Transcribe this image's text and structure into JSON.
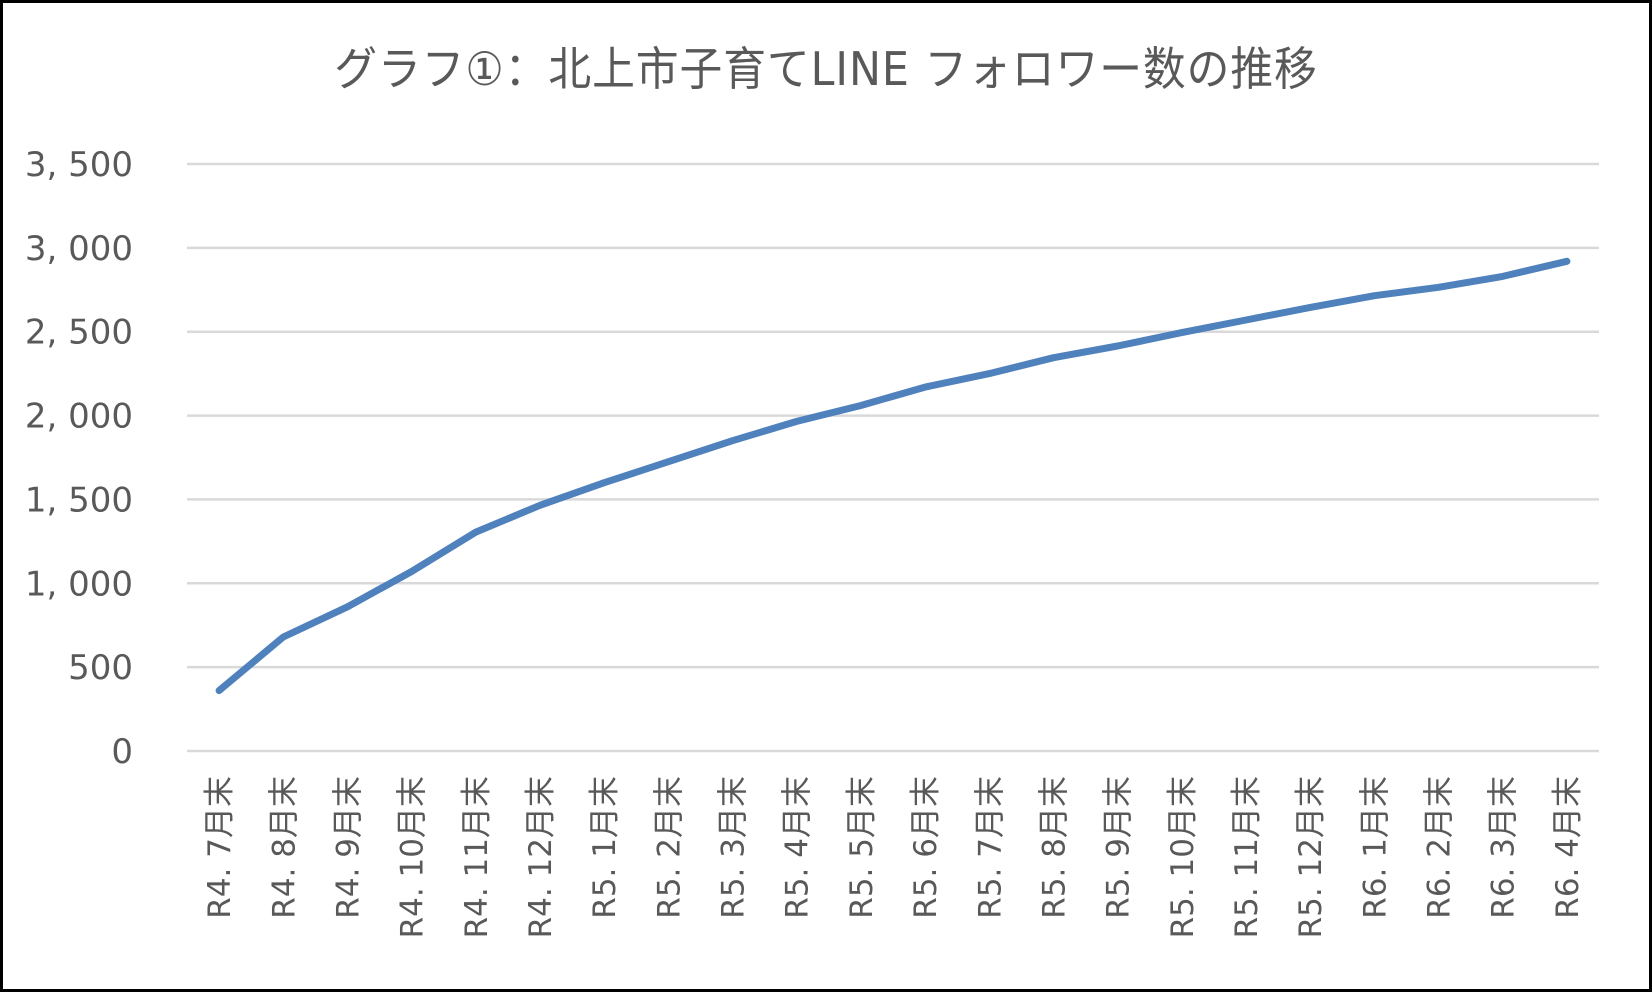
{
  "chart_data": {
    "type": "line",
    "title": "グラフ①：北上市子育てLINE フォロワー数の推移",
    "xlabel": "",
    "ylabel": "",
    "ylim": [
      0,
      3500
    ],
    "yticks": [
      0,
      500,
      1000,
      1500,
      2000,
      2500,
      3000,
      3500
    ],
    "ytick_labels": [
      "0",
      "500",
      "1, 000",
      "1, 500",
      "2, 000",
      "2, 500",
      "3, 000",
      "3, 500"
    ],
    "grid": true,
    "legend": null,
    "categories": [
      "R4. 7月末",
      "R4. 8月末",
      "R4. 9月末",
      "R4. 10月末",
      "R4. 11月末",
      "R4. 12月末",
      "R5. 1月末",
      "R5. 2月末",
      "R5. 3月末",
      "R5. 4月末",
      "R5. 5月末",
      "R5. 6月末",
      "R5. 7月末",
      "R5. 8月末",
      "R5. 9月末",
      "R5. 10月末",
      "R5. 11月末",
      "R5. 12月末",
      "R6. 1月末",
      "R6. 2月末",
      "R6. 3月末",
      "R6. 4月末"
    ],
    "series": [
      {
        "name": "フォロワー数",
        "color": "#4F81BD",
        "values": [
          360,
          680,
          860,
          1070,
          1305,
          1465,
          1600,
          1725,
          1850,
          1965,
          2060,
          2170,
          2250,
          2345,
          2415,
          2495,
          2570,
          2645,
          2715,
          2765,
          2830,
          2920
        ]
      }
    ]
  },
  "colors": {
    "line": "#4F81BD",
    "grid": "#D9D9D9",
    "text": "#595959",
    "frame": "#000000"
  }
}
